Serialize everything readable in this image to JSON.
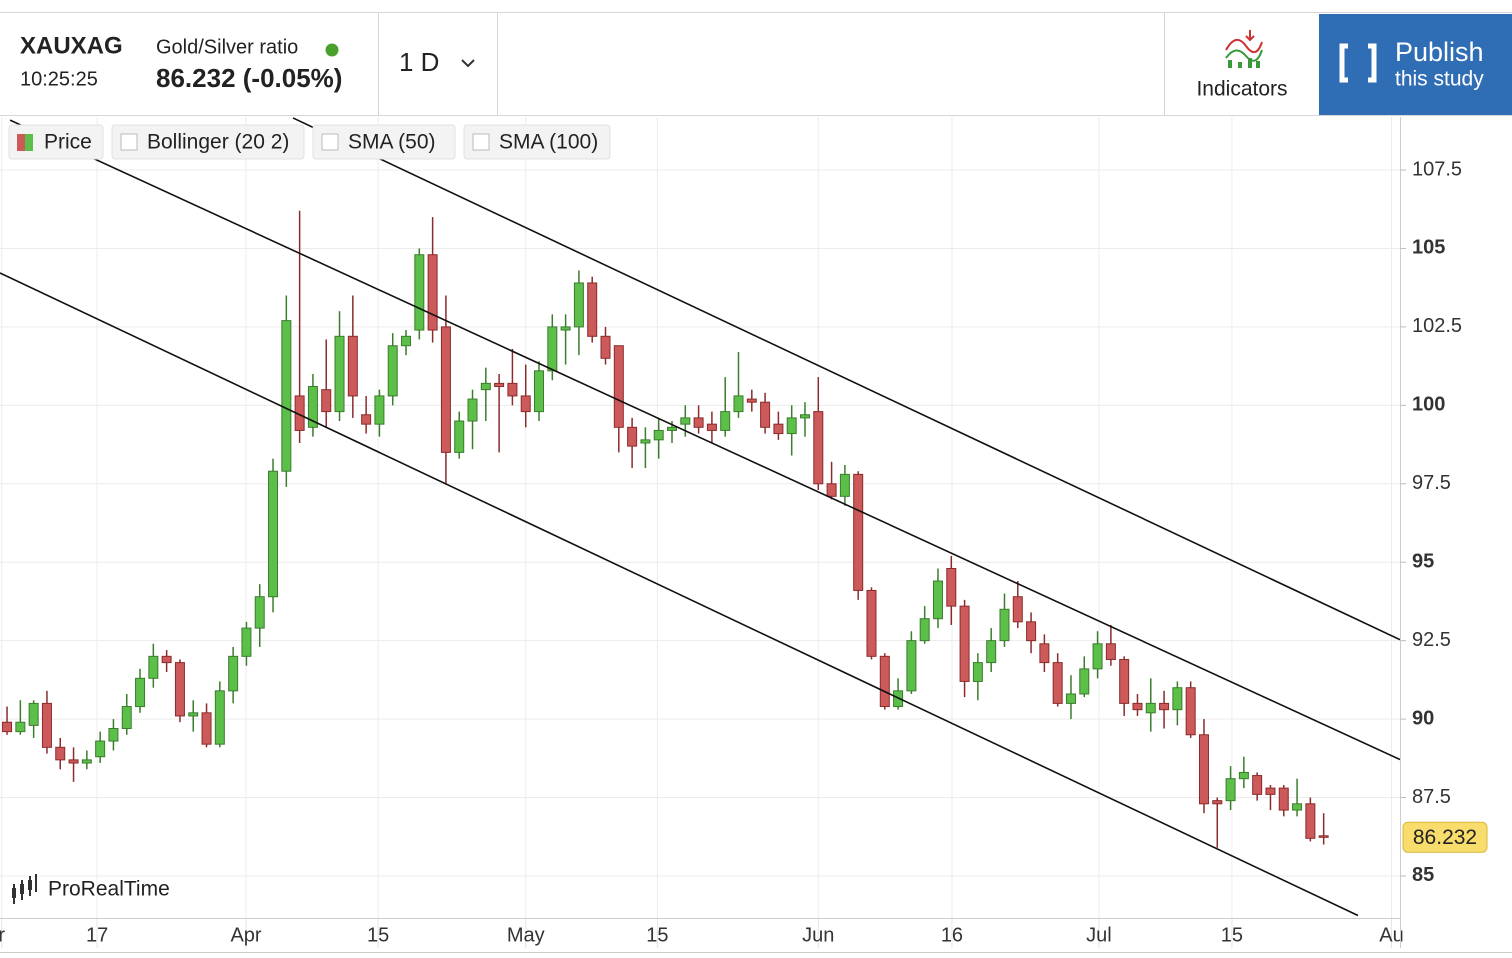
{
  "header": {
    "symbol": "XAUXAG",
    "time": "10:25:25",
    "name": "Gold/Silver ratio",
    "price_change": "86.232 (-0.05%)",
    "timeframe": "1 D",
    "indicators": "Indicators",
    "publish": [
      "Publish",
      "this study"
    ]
  },
  "legend": [
    "Price",
    "Bollinger (20 2)",
    "SMA (50)",
    "SMA (100)"
  ],
  "watermark": "ProRealTime",
  "chart_data": {
    "type": "candlestick",
    "up_color": "#5cbf4a",
    "down_color": "#cc5a5a",
    "grid": true,
    "open": [
      89.9,
      89.6,
      89.8,
      90.5,
      89.1,
      88.7,
      88.6,
      88.8,
      89.3,
      89.7,
      90.4,
      91.3,
      92.0,
      91.8,
      90.1,
      90.2,
      89.2,
      90.9,
      92.0,
      92.9,
      93.9,
      97.9,
      100.3,
      99.3,
      100.5,
      99.8,
      102.2,
      99.7,
      99.4,
      100.3,
      101.9,
      102.4,
      104.8,
      102.5,
      98.5,
      99.5,
      100.5,
      100.7,
      100.7,
      100.3,
      99.8,
      101.1,
      102.4,
      102.5,
      103.9,
      102.2,
      101.9,
      99.3,
      98.8,
      98.9,
      99.2,
      99.4,
      99.6,
      99.4,
      99.2,
      99.8,
      100.2,
      100.1,
      99.4,
      99.1,
      99.6,
      99.8,
      97.5,
      97.1,
      97.8,
      94.1,
      92.0,
      90.4,
      90.9,
      92.5,
      93.2,
      94.8,
      93.6,
      91.2,
      91.8,
      92.5,
      93.9,
      93.1,
      92.4,
      91.8,
      90.5,
      90.8,
      91.6,
      92.4,
      91.9,
      90.5,
      90.2,
      90.5,
      90.3,
      91.0,
      89.5,
      87.4,
      87.4,
      88.1,
      88.2,
      87.8,
      87.8,
      87.1,
      87.3,
      86.28
    ],
    "close": [
      89.6,
      89.9,
      90.5,
      89.1,
      88.7,
      88.6,
      88.7,
      89.3,
      89.7,
      90.4,
      91.3,
      92.0,
      91.8,
      90.1,
      90.2,
      89.2,
      90.9,
      92.0,
      92.9,
      93.9,
      97.9,
      102.7,
      99.2,
      100.6,
      99.8,
      102.2,
      100.3,
      99.4,
      100.3,
      101.9,
      102.2,
      104.8,
      102.4,
      98.5,
      99.5,
      100.2,
      100.7,
      100.6,
      100.3,
      99.8,
      101.1,
      102.5,
      102.5,
      103.9,
      102.2,
      101.5,
      99.3,
      98.7,
      98.9,
      99.2,
      99.3,
      99.6,
      99.3,
      99.2,
      99.8,
      100.3,
      100.1,
      99.3,
      99.1,
      99.6,
      99.7,
      97.5,
      97.1,
      97.8,
      94.1,
      92.0,
      90.4,
      90.9,
      92.5,
      93.2,
      94.4,
      93.6,
      91.2,
      91.8,
      92.5,
      93.5,
      93.1,
      92.5,
      91.8,
      90.5,
      90.8,
      91.6,
      92.4,
      91.9,
      90.5,
      90.3,
      90.5,
      90.3,
      91.0,
      89.5,
      87.3,
      87.3,
      88.1,
      88.3,
      87.6,
      87.6,
      87.1,
      87.3,
      86.2,
      86.232
    ],
    "high": [
      90.4,
      90.6,
      90.6,
      90.9,
      89.4,
      89.1,
      89.0,
      89.6,
      90.0,
      90.8,
      91.6,
      92.4,
      92.2,
      91.9,
      90.6,
      90.5,
      91.2,
      92.3,
      93.1,
      94.3,
      98.3,
      103.5,
      106.2,
      101.0,
      102.1,
      103.0,
      103.5,
      100.3,
      100.5,
      102.3,
      102.4,
      105.0,
      106.0,
      103.5,
      99.8,
      100.5,
      101.2,
      101.0,
      101.8,
      101.3,
      101.4,
      102.9,
      102.9,
      104.3,
      104.1,
      102.5,
      101.9,
      99.6,
      99.3,
      99.6,
      99.5,
      100.0,
      100.0,
      99.8,
      100.9,
      101.7,
      100.5,
      100.4,
      99.8,
      100.0,
      100.1,
      100.9,
      98.2,
      98.1,
      97.9,
      94.2,
      92.1,
      91.3,
      92.8,
      93.6,
      94.8,
      95.2,
      93.8,
      92.1,
      92.9,
      94.0,
      94.4,
      93.4,
      92.7,
      92.1,
      91.4,
      92.0,
      92.8,
      93.0,
      92.0,
      90.8,
      91.3,
      90.9,
      91.2,
      91.2,
      90.0,
      87.5,
      88.5,
      88.8,
      88.3,
      87.9,
      87.9,
      88.1,
      87.5,
      87.0
    ],
    "low": [
      89.5,
      89.5,
      89.4,
      88.9,
      88.4,
      88.0,
      88.4,
      88.6,
      89.0,
      89.5,
      90.2,
      91.0,
      91.5,
      89.9,
      89.6,
      89.1,
      89.1,
      90.5,
      91.7,
      92.3,
      93.4,
      97.4,
      98.8,
      99.0,
      99.3,
      99.5,
      99.6,
      99.1,
      99.0,
      100.0,
      101.6,
      102.1,
      102.0,
      97.5,
      98.3,
      98.6,
      99.5,
      98.5,
      100.0,
      99.3,
      99.5,
      100.8,
      101.3,
      101.6,
      102.0,
      101.3,
      98.5,
      98.0,
      98.0,
      98.3,
      98.8,
      99.0,
      99.1,
      98.8,
      99.0,
      99.6,
      99.8,
      99.1,
      98.9,
      98.4,
      99.0,
      97.3,
      97.0,
      96.8,
      93.8,
      91.9,
      90.3,
      90.3,
      90.8,
      92.4,
      92.9,
      93.0,
      90.7,
      90.6,
      91.5,
      92.3,
      92.9,
      92.1,
      91.5,
      90.4,
      90.0,
      90.7,
      91.3,
      91.7,
      90.1,
      90.1,
      89.6,
      89.7,
      89.8,
      89.4,
      87.0,
      85.9,
      87.1,
      87.8,
      87.4,
      87.1,
      86.9,
      86.9,
      86.1,
      86.0
    ],
    "xlim": [
      -0.53,
      104.74
    ],
    "xticks": [
      {
        "value": -0.4,
        "label": "r"
      },
      {
        "value": 6.77,
        "label": "17"
      },
      {
        "value": 17.97,
        "label": "Apr"
      },
      {
        "value": 27.9,
        "label": "15"
      },
      {
        "value": 39.0,
        "label": "May"
      },
      {
        "value": 48.9,
        "label": "15"
      },
      {
        "value": 61.0,
        "label": "Jun"
      },
      {
        "value": 71.05,
        "label": "16"
      },
      {
        "value": 82.1,
        "label": "Jul"
      },
      {
        "value": 92.1,
        "label": "15"
      },
      {
        "value": 104.1,
        "label": "Au"
      }
    ],
    "ylim": [
      83.66,
      109.19
    ],
    "yticks": [
      85,
      87.5,
      90,
      92.5,
      95,
      97.5,
      100,
      102.5,
      105,
      107.5
    ],
    "current_price": 86.232,
    "current_price_color": "#f8dc6c",
    "trend_lines": [
      {
        "x": [
          -0.53,
          101.58
        ],
        "y": [
          104.22,
          83.74
        ]
      },
      {
        "x": [
          0.23,
          104.74
        ],
        "y": [
          109.09,
          88.71
        ]
      },
      {
        "x": [
          21.5,
          104.74
        ],
        "y": [
          109.16,
          92.53
        ]
      }
    ]
  }
}
